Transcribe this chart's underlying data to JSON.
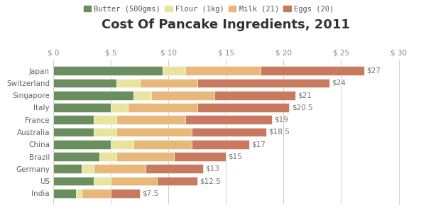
{
  "title": "Cost Of Pancake Ingredients, 2011",
  "categories": [
    "Japan",
    "Switzerland",
    "Singapore",
    "Italy",
    "France",
    "Australia",
    "China",
    "Brazil",
    "Germany",
    "US",
    "India"
  ],
  "totals": [
    "$27",
    "$24",
    "$21",
    "$20.5",
    "$19",
    "$18.5",
    "$17",
    "$15",
    "$13",
    "$12.5",
    "$7.5"
  ],
  "series": {
    "Butter (500gms)": [
      9.5,
      5.5,
      7.0,
      5.0,
      3.5,
      3.5,
      5.0,
      4.0,
      2.5,
      3.5,
      2.0
    ],
    "Flour (1kg)": [
      2.0,
      2.0,
      1.5,
      1.5,
      2.0,
      2.0,
      2.0,
      1.5,
      1.0,
      1.5,
      0.5
    ],
    "Milk (21)": [
      6.5,
      5.0,
      5.5,
      6.0,
      6.0,
      6.5,
      5.0,
      5.0,
      4.5,
      4.0,
      2.5
    ],
    "Eggs (20)": [
      9.0,
      11.5,
      7.0,
      8.0,
      7.5,
      6.5,
      5.0,
      4.5,
      5.0,
      3.5,
      2.5
    ]
  },
  "colors": {
    "Butter (500gms)": "#6b8e5e",
    "Flour (1kg)": "#e8e4a0",
    "Milk (21)": "#e8b87a",
    "Eggs (20)": "#c97a5e"
  },
  "legend_display": [
    "Butter (500gms)",
    "Flour (1kg)",
    "Milk (21)",
    "Eggs (20)"
  ],
  "xlim": [
    0,
    30
  ],
  "xticks": [
    0,
    5,
    10,
    15,
    20,
    25,
    30
  ],
  "background_color": "#ffffff",
  "grid_color": "#cccccc",
  "title_fontsize": 13,
  "label_fontsize": 7.5,
  "tick_fontsize": 7.5,
  "total_fontsize": 7.5
}
